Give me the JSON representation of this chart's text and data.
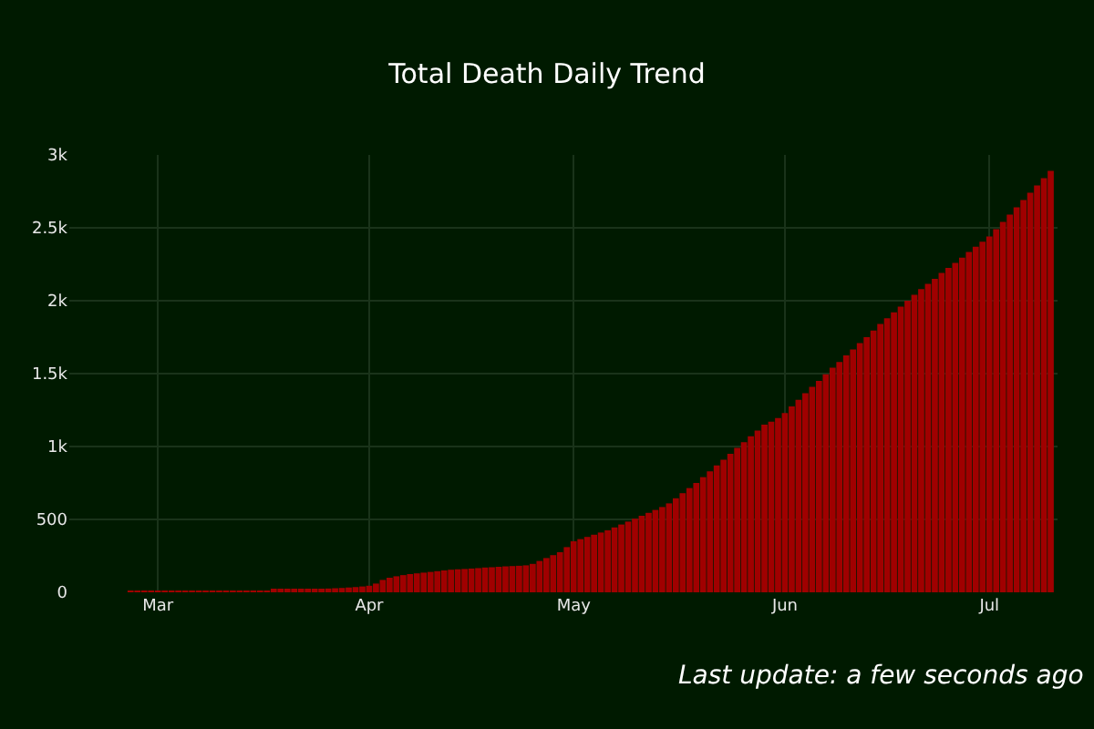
{
  "chart_data": {
    "type": "bar",
    "title": "Total Death Daily Trend",
    "x": [
      "--02-18",
      "--02-19",
      "--02-20",
      "--02-21",
      "--02-22",
      "--02-23",
      "--02-24",
      "--02-25",
      "--02-26",
      "--02-27",
      "--02-28",
      "--02-29",
      "--03-01",
      "--03-02",
      "--03-03",
      "--03-04",
      "--03-05",
      "--03-06",
      "--03-07",
      "--03-08",
      "--03-09",
      "--03-10",
      "--03-11",
      "--03-12",
      "--03-13",
      "--03-14",
      "--03-15",
      "--03-16",
      "--03-17",
      "--03-18",
      "--03-19",
      "--03-20",
      "--03-21",
      "--03-22",
      "--03-23",
      "--03-24",
      "--03-25",
      "--03-26",
      "--03-27",
      "--03-28",
      "--03-29",
      "--03-30",
      "--03-31",
      "--04-01",
      "--04-02",
      "--04-03",
      "--04-04",
      "--04-05",
      "--04-06",
      "--04-07",
      "--04-08",
      "--04-09",
      "--04-10",
      "--04-11",
      "--04-12",
      "--04-13",
      "--04-14",
      "--04-15",
      "--04-16",
      "--04-17",
      "--04-18",
      "--04-19",
      "--04-20",
      "--04-21",
      "--04-22",
      "--04-23",
      "--04-24",
      "--04-25",
      "--04-26",
      "--04-27",
      "--04-28",
      "--04-29",
      "--04-30",
      "--05-01",
      "--05-02",
      "--05-03",
      "--05-04",
      "--05-05",
      "--05-06",
      "--05-07",
      "--05-08",
      "--05-09",
      "--05-10",
      "--05-11",
      "--05-12",
      "--05-13",
      "--05-14",
      "--05-15",
      "--05-16",
      "--05-17",
      "--05-18",
      "--05-19",
      "--05-20",
      "--05-21",
      "--05-22",
      "--05-23",
      "--05-24",
      "--05-25",
      "--05-26",
      "--05-27",
      "--05-28",
      "--05-29",
      "--05-30",
      "--05-31",
      "--06-01",
      "--06-02",
      "--06-03",
      "--06-04",
      "--06-05",
      "--06-06",
      "--06-07",
      "--06-08",
      "--06-09",
      "--06-10",
      "--06-11",
      "--06-12",
      "--06-13",
      "--06-14",
      "--06-15",
      "--06-16",
      "--06-17",
      "--06-18",
      "--06-19",
      "--06-20",
      "--06-21",
      "--06-22",
      "--06-23",
      "--06-24",
      "--06-25",
      "--06-26",
      "--06-27",
      "--06-28",
      "--06-29",
      "--06-30",
      "--07-01",
      "--07-02",
      "--07-03",
      "--07-04",
      "--07-05",
      "--07-06",
      "--07-07",
      "--07-08",
      "--07-09",
      "--07-10"
    ],
    "values": [
      0,
      0,
      0,
      0,
      0,
      0,
      0,
      0,
      1,
      1,
      1,
      1,
      2,
      2,
      3,
      3,
      4,
      4,
      5,
      5,
      6,
      6,
      7,
      7,
      8,
      9,
      10,
      11,
      12,
      13,
      14,
      15,
      16,
      18,
      20,
      22,
      24,
      26,
      28,
      30,
      33,
      36,
      40,
      45,
      60,
      85,
      100,
      110,
      118,
      125,
      130,
      135,
      140,
      145,
      150,
      155,
      158,
      160,
      163,
      166,
      170,
      172,
      175,
      178,
      180,
      182,
      185,
      195,
      215,
      235,
      255,
      275,
      310,
      350,
      365,
      380,
      395,
      410,
      425,
      445,
      465,
      485,
      505,
      525,
      545,
      565,
      585,
      610,
      645,
      680,
      715,
      750,
      790,
      830,
      870,
      910,
      950,
      990,
      1030,
      1070,
      1110,
      1150,
      1170,
      1195,
      1230,
      1275,
      1320,
      1365,
      1410,
      1450,
      1495,
      1540,
      1580,
      1625,
      1665,
      1710,
      1750,
      1795,
      1840,
      1880,
      1920,
      1960,
      2000,
      2040,
      2080,
      2115,
      2150,
      2190,
      2225,
      2260,
      2295,
      2335,
      2370,
      2405,
      2440,
      2490,
      2540,
      2590,
      2640,
      2690,
      2740,
      2790,
      2840,
      2890
    ],
    "color": "#a00000",
    "xlim": [
      "--02-17",
      "--07-11"
    ],
    "xticks": [
      {
        "value": "--03-01",
        "label": "Mar"
      },
      {
        "value": "--04-01",
        "label": "Apr"
      },
      {
        "value": "--05-01",
        "label": "May"
      },
      {
        "value": "--06-01",
        "label": "Jun"
      },
      {
        "value": "--07-01",
        "label": "Jul"
      }
    ],
    "ylim": [
      0,
      3000
    ],
    "yticks": [
      0,
      500,
      {
        "value": 1000,
        "label": "1k"
      },
      {
        "value": 1500,
        "label": "1.5k"
      },
      {
        "value": 2000,
        "label": "2k"
      },
      {
        "value": 2500,
        "label": "2.5k"
      },
      {
        "value": 3000,
        "label": "3k"
      }
    ],
    "grid": true,
    "annotations": [
      "Last update: a few seconds ago"
    ]
  }
}
